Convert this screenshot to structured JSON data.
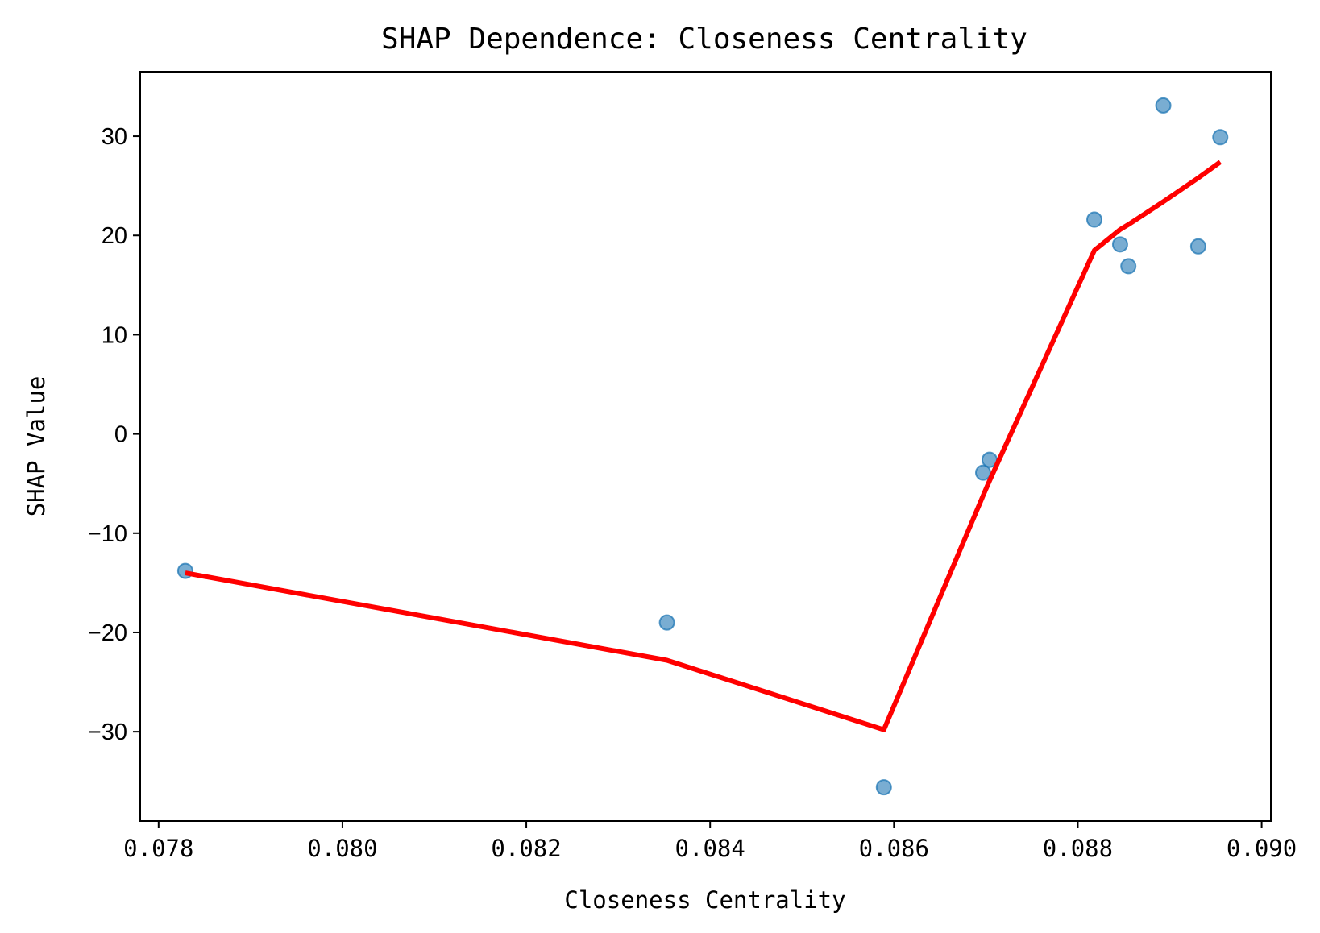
{
  "chart_data": {
    "type": "scatter",
    "title": "SHAP Dependence: Closeness Centrality",
    "xlabel": "Closeness Centrality",
    "ylabel": "SHAP Value",
    "xlim": [
      0.0778,
      0.0901
    ],
    "ylim": [
      -39,
      36.5
    ],
    "x_ticks": [
      0.078,
      0.08,
      0.082,
      0.084,
      0.086,
      0.088,
      0.09
    ],
    "x_tick_labels": [
      "0.078",
      "0.080",
      "0.082",
      "0.084",
      "0.086",
      "0.088",
      "0.090"
    ],
    "y_ticks": [
      -30,
      -20,
      -10,
      0,
      10,
      20,
      30
    ],
    "y_tick_labels": [
      "−30",
      "−20",
      "−10",
      "0",
      "10",
      "20",
      "30"
    ],
    "grid": false,
    "series": [
      {
        "type": "scatter",
        "color": "#1f77b4",
        "points": [
          {
            "x": 0.07829,
            "y": -13.8
          },
          {
            "x": 0.08353,
            "y": -19.0
          },
          {
            "x": 0.08589,
            "y": -35.6
          },
          {
            "x": 0.08697,
            "y": -3.9
          },
          {
            "x": 0.08704,
            "y": -2.6
          },
          {
            "x": 0.08818,
            "y": 21.6
          },
          {
            "x": 0.08846,
            "y": 19.1
          },
          {
            "x": 0.08855,
            "y": 16.9
          },
          {
            "x": 0.08893,
            "y": 33.1
          },
          {
            "x": 0.08931,
            "y": 18.9
          },
          {
            "x": 0.08955,
            "y": 29.9
          }
        ]
      },
      {
        "type": "line",
        "color": "#ff0000",
        "points": [
          {
            "x": 0.07829,
            "y": -14.0
          },
          {
            "x": 0.08353,
            "y": -22.8
          },
          {
            "x": 0.08589,
            "y": -29.8
          },
          {
            "x": 0.08697,
            "y": -6.2
          },
          {
            "x": 0.08704,
            "y": -4.7
          },
          {
            "x": 0.08818,
            "y": 18.5
          },
          {
            "x": 0.08846,
            "y": 20.6
          },
          {
            "x": 0.08855,
            "y": 21.1
          },
          {
            "x": 0.08893,
            "y": 23.4
          },
          {
            "x": 0.08931,
            "y": 25.8
          },
          {
            "x": 0.08955,
            "y": 27.4
          }
        ]
      }
    ]
  }
}
